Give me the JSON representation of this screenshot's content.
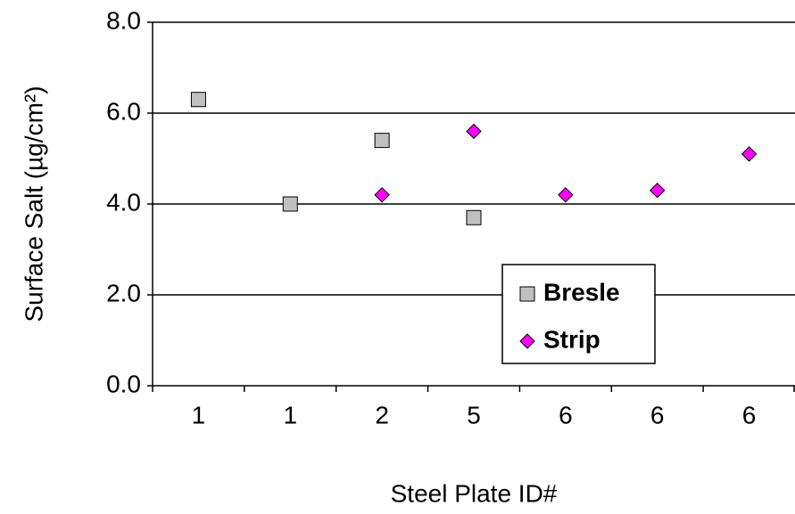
{
  "chart_data": {
    "type": "scatter",
    "x_label": "Steel Plate ID#",
    "y_label": "Surface Salt (µg/cm²)",
    "categories": [
      "1",
      "1",
      "2",
      "5",
      "6",
      "6",
      "6"
    ],
    "series": [
      {
        "name": "Bresle",
        "color": "#c0c0c0",
        "marker": "square",
        "values": [
          6.3,
          4.0,
          5.4,
          3.7,
          null,
          null,
          null
        ]
      },
      {
        "name": "Strip",
        "color": "#ff00ff",
        "marker": "diamond",
        "values": [
          null,
          null,
          4.2,
          5.6,
          4.2,
          4.3,
          5.1
        ]
      }
    ],
    "ylim": [
      0,
      8
    ],
    "yticks": [
      {
        "value": 0,
        "label": "0.0"
      },
      {
        "value": 2,
        "label": "2.0"
      },
      {
        "value": 4,
        "label": "4.0"
      },
      {
        "value": 6,
        "label": "6.0"
      },
      {
        "value": 8,
        "label": "8.0"
      }
    ],
    "grid": true,
    "legend": "lower right"
  }
}
